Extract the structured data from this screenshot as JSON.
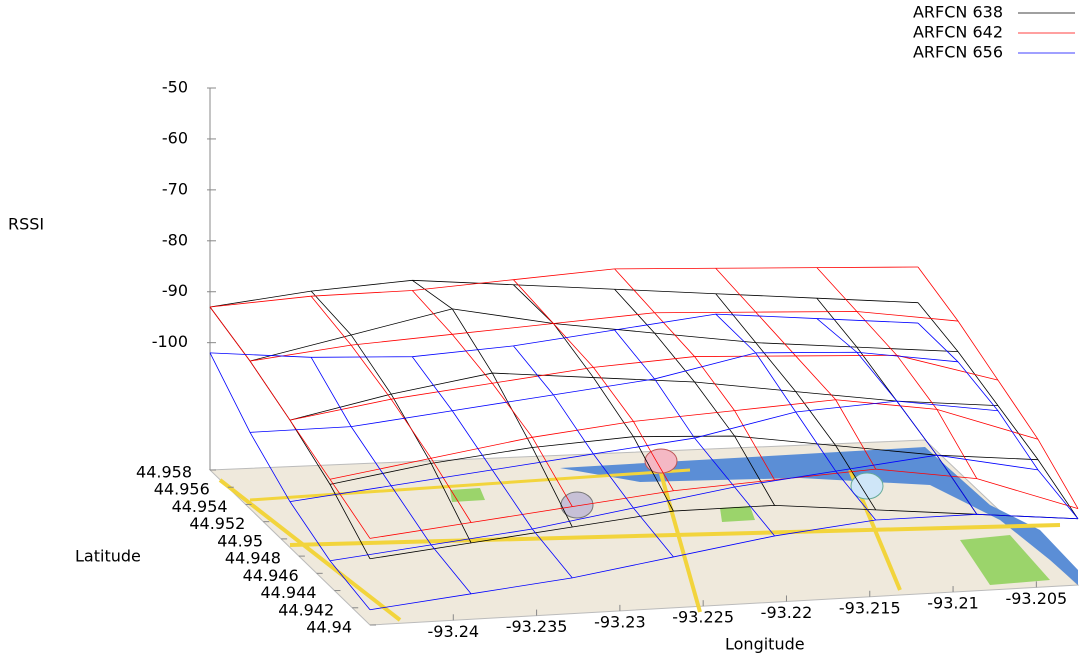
{
  "chart_data": {
    "type": "surface3d",
    "xlabel": "Longitude",
    "ylabel": "Latitude",
    "zlabel": "RSSI",
    "xlim": [
      -93.245,
      -93.2025
    ],
    "xticks": [
      -93.24,
      -93.235,
      -93.23,
      -93.225,
      -93.22,
      -93.215,
      -93.21,
      -93.205
    ],
    "ylim": [
      44.94,
      44.958
    ],
    "yticks": [
      44.94,
      44.942,
      44.944,
      44.946,
      44.948,
      44.95,
      44.952,
      44.954,
      44.956,
      44.958
    ],
    "zlim": [
      -125,
      -50
    ],
    "zticks": [
      -100,
      -90,
      -80,
      -70,
      -60,
      -50
    ],
    "series": [
      {
        "name": "ARFCN 638",
        "color": "#000000",
        "values": [
          [
            -112,
            -110,
            -108,
            -106,
            -106,
            -108,
            -110,
            -112
          ],
          [
            -105,
            -102,
            -100,
            -99,
            -100,
            -103,
            -106,
            -108
          ],
          [
            -100,
            -96,
            -93,
            -95,
            -97,
            -100,
            -103,
            -105
          ],
          [
            -96,
            -92,
            -88,
            -92,
            -95,
            -98,
            -100,
            -102
          ],
          [
            -93,
            -91,
            -90,
            -92,
            -94,
            -96,
            -98,
            -100
          ]
        ]
      },
      {
        "name": "ARFCN 642",
        "color": "#ff0000",
        "values": [
          [
            -108,
            -106,
            -104,
            -102,
            -101,
            -100,
            -103,
            -110
          ],
          [
            -104,
            -101,
            -98,
            -96,
            -95,
            -94,
            -97,
            -104
          ],
          [
            -100,
            -97,
            -95,
            -93,
            -92,
            -93,
            -94,
            -100
          ],
          [
            -96,
            -94,
            -93,
            -92,
            -91,
            -92,
            -93,
            -96
          ],
          [
            -93,
            -92,
            -92,
            -91,
            -90,
            -91,
            -92,
            -93
          ]
        ]
      },
      {
        "name": "ARFCN 656",
        "color": "#0000ff",
        "values": [
          [
            -122,
            -120,
            -118,
            -115,
            -112,
            -110,
            -110,
            -112
          ],
          [
            -120,
            -118,
            -116,
            -113,
            -110,
            -108,
            -106,
            -110
          ],
          [
            -116,
            -114,
            -112,
            -110,
            -108,
            -104,
            -103,
            -106
          ],
          [
            -110,
            -110,
            -108,
            -106,
            -104,
            -100,
            -101,
            -104
          ],
          [
            -102,
            -104,
            -105,
            -104,
            -102,
            -100,
            -102,
            -104
          ]
        ]
      }
    ]
  }
}
